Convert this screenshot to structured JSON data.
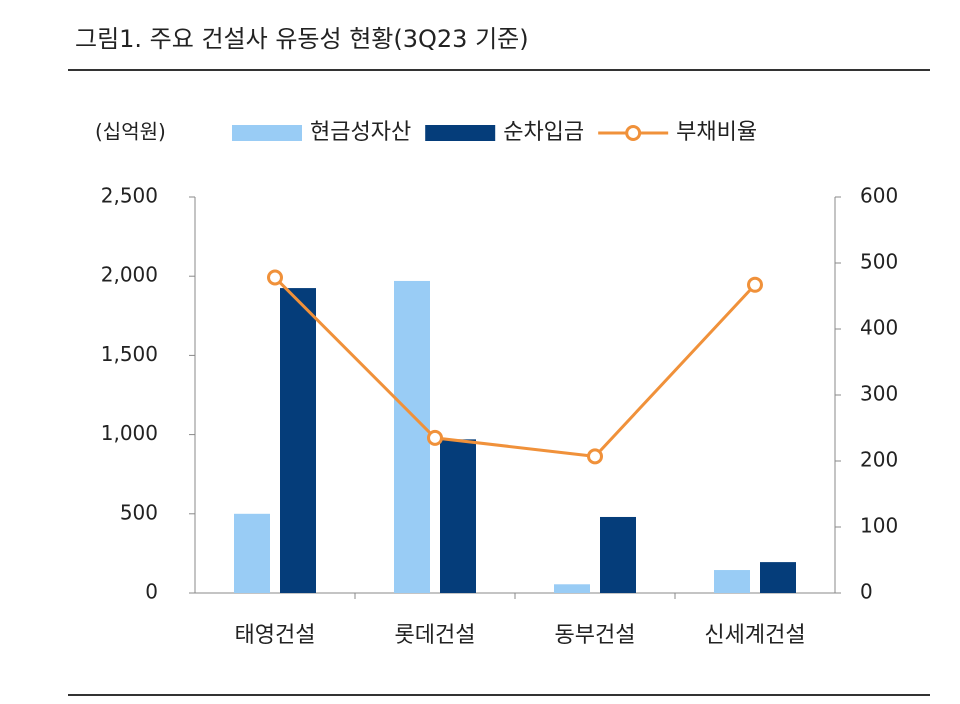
{
  "chart_data": {
    "type": "bar_line",
    "title": "그림1.   주요 건설사 유동성 현황(3Q23 기준)",
    "y_label": "(십억원)",
    "categories": [
      "태영건설",
      "롯데건설",
      "동부건설",
      "신세계건설"
    ],
    "series": [
      {
        "name": "현금성자산",
        "type": "bar",
        "color": "#99ccf5",
        "values": [
          500,
          1970,
          55,
          145
        ]
      },
      {
        "name": "순차입금",
        "type": "bar",
        "color": "#053d7a",
        "values": [
          1925,
          970,
          480,
          195
        ]
      },
      {
        "name": "부채비율",
        "type": "line",
        "color": "#f0913a",
        "axis": "y2",
        "values": [
          478,
          235,
          207,
          467
        ]
      }
    ],
    "ylim": [
      0,
      2500
    ],
    "yticks": [
      0,
      500,
      {
        "value": 1000,
        "label": "1,000"
      },
      {
        "value": 1500,
        "label": "1,500"
      },
      {
        "value": 2000,
        "label": "2,000"
      },
      {
        "value": 2500,
        "label": "2,500"
      }
    ],
    "y2lim": [
      0,
      600
    ],
    "y2ticks": [
      0,
      100,
      200,
      300,
      400,
      500,
      600
    ],
    "grid": false
  }
}
